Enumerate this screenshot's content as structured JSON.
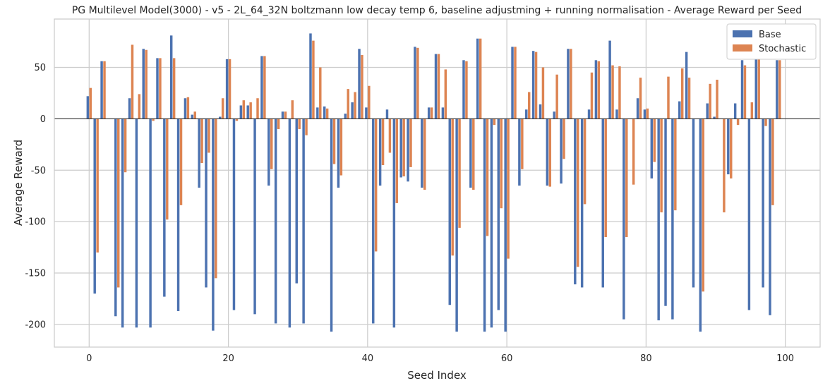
{
  "chart_data": {
    "type": "bar",
    "title": "PG Multilevel Model(3000) - v5 - 2L_64_32N boltzmann low decay temp 6, baseline adjustming + running normalisation - Average Reward per Seed",
    "xlabel": "Seed Index",
    "ylabel": "Average Reward",
    "xlim": [
      -5,
      105
    ],
    "ylim": [
      -222,
      97
    ],
    "xticks": [
      0,
      20,
      40,
      60,
      80,
      100
    ],
    "yticks": [
      -200,
      -150,
      -100,
      -50,
      0,
      50
    ],
    "grid": true,
    "legend_position": "top-right",
    "series": [
      {
        "name": "Base",
        "color": "#4c72b0",
        "values": [
          22,
          -170,
          56,
          0,
          -192,
          -203,
          20,
          -203,
          68,
          -203,
          59,
          -173,
          81,
          -187,
          20,
          4,
          -67,
          -164,
          -206,
          2,
          58,
          -186,
          13,
          13,
          -190,
          61,
          -65,
          -199,
          7,
          -203,
          -160,
          -199,
          83,
          11,
          12,
          -207,
          -67,
          5,
          16,
          68,
          11,
          -199,
          -65,
          9,
          -203,
          -57,
          -61,
          70,
          -67,
          11,
          63,
          11,
          -181,
          -207,
          57,
          -67,
          78,
          -207,
          -203,
          -186,
          -207,
          70,
          -65,
          9,
          66,
          14,
          -65,
          7,
          -63,
          68,
          -161,
          -164,
          9,
          57,
          -164,
          76,
          9,
          -195,
          0,
          20,
          9,
          -58,
          -196,
          -182,
          -195,
          17,
          65,
          -164,
          -207,
          15,
          2,
          0,
          -54,
          15,
          57,
          -186,
          78,
          -164,
          -191,
          57,
          0
        ]
      },
      {
        "name": "Stochastic",
        "color": "#dd8452",
        "values": [
          30,
          -130,
          56,
          0,
          -164,
          -52,
          72,
          24,
          67,
          -2,
          59,
          -98,
          59,
          -84,
          21,
          7,
          -43,
          -33,
          -155,
          20,
          58,
          -2,
          18,
          16,
          20,
          61,
          -49,
          -10,
          7,
          18,
          -10,
          -16,
          76,
          50,
          10,
          -44,
          -55,
          29,
          26,
          62,
          32,
          -129,
          -45,
          -33,
          -82,
          -56,
          -47,
          69,
          -69,
          11,
          63,
          48,
          -133,
          -106,
          56,
          -69,
          78,
          -114,
          -6,
          -87,
          -136,
          70,
          -49,
          26,
          65,
          50,
          -66,
          43,
          -39,
          68,
          -144,
          -83,
          45,
          56,
          -115,
          52,
          51,
          -115,
          -64,
          40,
          10,
          -42,
          -91,
          41,
          -89,
          49,
          40,
          0,
          -168,
          34,
          38,
          -91,
          -58,
          -6,
          52,
          16,
          78,
          -7,
          -84,
          57,
          0
        ]
      }
    ]
  }
}
